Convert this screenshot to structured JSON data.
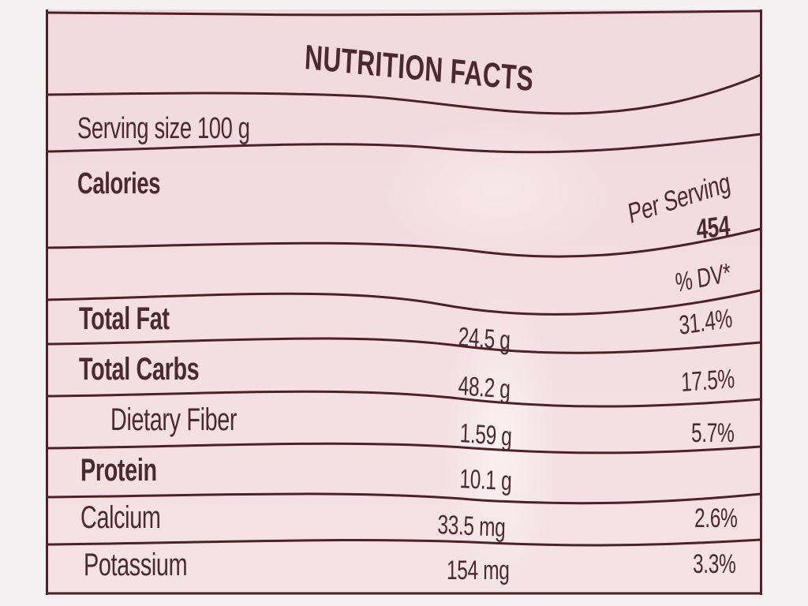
{
  "label": {
    "title": "NUTRITION FACTS",
    "serving_size": "Serving size 100 g",
    "calories_label": "Calories",
    "per_serving_label": "Per Serving",
    "calories_value": "454",
    "dv_header": "% DV*"
  },
  "nutrients": [
    {
      "name": "Total Fat",
      "amount": "24.5 g",
      "dv": "31.4%",
      "bold": true
    },
    {
      "name": "Total Carbs",
      "amount": "48.2 g",
      "dv": "17.5%",
      "bold": true
    },
    {
      "name": "Dietary Fiber",
      "amount": "1.59 g",
      "dv": "5.7%",
      "bold": false
    },
    {
      "name": "Protein",
      "amount": "10.1 g",
      "dv": "",
      "bold": true
    },
    {
      "name": "Calcium",
      "amount": "33.5 mg",
      "dv": "2.6%",
      "bold": false
    },
    {
      "name": "Potassium",
      "amount": "154 mg",
      "dv": "3.3%",
      "bold": false
    }
  ],
  "colors": {
    "ink": "#4a2a30",
    "label_background": "#f2dbe0",
    "rule": "#4a2228"
  }
}
